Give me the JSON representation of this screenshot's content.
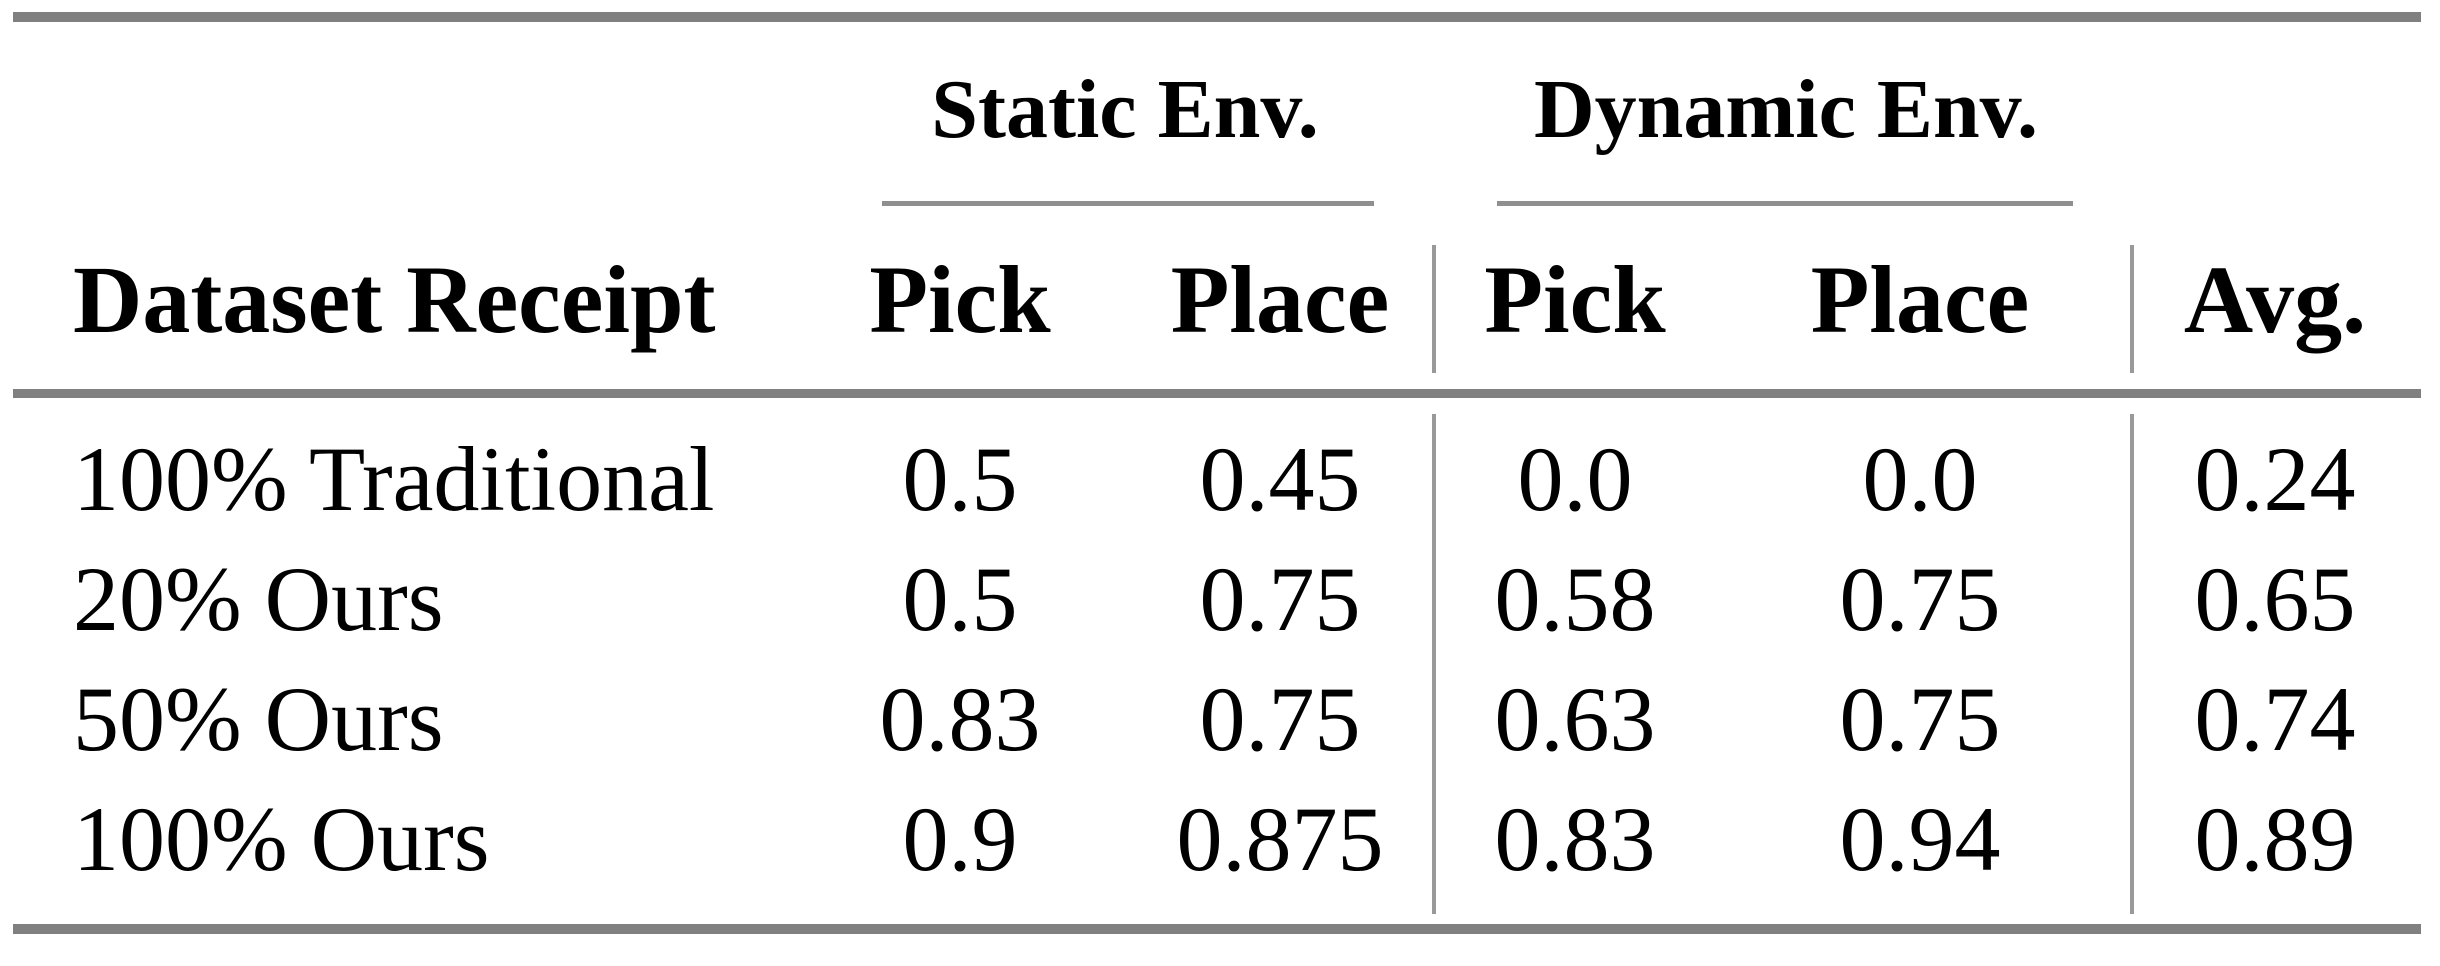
{
  "table": {
    "group_headers": {
      "static": "Static Env.",
      "dynamic": "Dynamic Env."
    },
    "column_headers": {
      "dataset": "Dataset Receipt",
      "static_pick": "Pick",
      "static_place": "Place",
      "dynamic_pick": "Pick",
      "dynamic_place": "Place",
      "avg": "Avg."
    },
    "rows": [
      {
        "label": "100% Traditional",
        "static_pick": "0.5",
        "static_place": "0.45",
        "dynamic_pick": "0.0",
        "dynamic_place": "0.0",
        "avg": "0.24"
      },
      {
        "label": "20% Ours",
        "static_pick": "0.5",
        "static_place": "0.75",
        "dynamic_pick": "0.58",
        "dynamic_place": "0.75",
        "avg": "0.65"
      },
      {
        "label": "50% Ours",
        "static_pick": "0.83",
        "static_place": "0.75",
        "dynamic_pick": "0.63",
        "dynamic_place": "0.75",
        "avg": "0.74"
      },
      {
        "label": "100% Ours",
        "static_pick": "0.9",
        "static_place": "0.875",
        "dynamic_pick": "0.83",
        "dynamic_place": "0.94",
        "avg": "0.89"
      }
    ],
    "colors": {
      "heavy_rule": "#808080",
      "light_rule": "#8f8f8f",
      "column_divider": "#999999",
      "text": "#000000",
      "background": "#ffffff"
    }
  }
}
